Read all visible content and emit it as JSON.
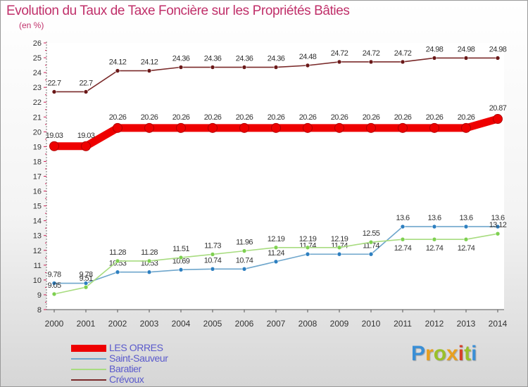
{
  "header": {
    "title": "Evolution du Taux de Taxe Foncière sur les Propriétés Bâties",
    "unit": "(en %)"
  },
  "brand": {
    "letters": [
      "P",
      "r",
      "o",
      "x",
      "i",
      "t",
      "i"
    ],
    "colors": [
      "#3a8fd6",
      "#e8a020",
      "#9ac02a",
      "#e8a020",
      "#d6402a",
      "#9ac02a",
      "#3a8fd6"
    ]
  },
  "colors": {
    "title": "#c0306a",
    "axis": "#555555",
    "grid": "#dddddd"
  },
  "chart_data": {
    "type": "line",
    "title": "Evolution du Taux de Taxe Foncière sur les Propriétés Bâties",
    "ylabel": "(en %)",
    "xlabel": "",
    "ylim": [
      8,
      26
    ],
    "yticks": [
      8,
      9,
      10,
      11,
      12,
      13,
      14,
      15,
      16,
      17,
      18,
      19,
      20,
      21,
      22,
      23,
      24,
      25,
      26
    ],
    "categories": [
      "2000",
      "2001",
      "2002",
      "2003",
      "2004",
      "2005",
      "2006",
      "2007",
      "2008",
      "2009",
      "2010",
      "2011",
      "2012",
      "2013",
      "2014"
    ],
    "series": [
      {
        "name": "LES ORRES",
        "color": "#ee0000",
        "marker": "#ee0000",
        "weight": "thick",
        "values": [
          19.03,
          19.03,
          20.26,
          20.26,
          20.26,
          20.26,
          20.26,
          20.26,
          20.26,
          20.26,
          20.26,
          20.26,
          20.26,
          20.26,
          20.87
        ],
        "labels": [
          "19.03",
          "19.03",
          "20.26",
          "20.26",
          "20.26",
          "20.26",
          "20.26",
          "20.26",
          "20.26",
          "20.26",
          "20.26",
          "20.26",
          "20.26",
          "20.26",
          "20.87"
        ],
        "label_pos": "above"
      },
      {
        "name": "Saint-Sauveur",
        "color": "#6ea6cc",
        "marker": "#2d7fc0",
        "weight": "thin",
        "values": [
          9.78,
          9.78,
          10.53,
          10.53,
          10.69,
          10.74,
          10.74,
          11.24,
          11.74,
          11.74,
          11.74,
          13.6,
          13.6,
          13.6,
          13.6
        ],
        "labels": [
          "9.78",
          "9.78",
          "10.53",
          "10.53",
          "10.69",
          "10.74",
          "10.74",
          "11.24",
          "11.74",
          "11.74",
          "11.74",
          "13.6",
          "13.6",
          "13.6",
          "13.6"
        ],
        "label_pos": [
          "above",
          "above",
          "above",
          "above",
          "above",
          "above",
          "above",
          "above",
          "above",
          "above",
          "above",
          "above",
          "above",
          "above",
          "above"
        ]
      },
      {
        "name": "Baratier",
        "color": "#a8dc80",
        "marker": "#7ed050",
        "weight": "thin",
        "values": [
          9.05,
          9.51,
          11.28,
          11.28,
          11.51,
          11.73,
          11.96,
          12.19,
          12.19,
          12.19,
          12.55,
          12.74,
          12.74,
          12.74,
          13.12
        ],
        "labels": [
          "9.05",
          "9.51",
          "11.28",
          "11.28",
          "11.51",
          "11.73",
          "11.96",
          "12.19",
          "12.19",
          "12.19",
          "12.55",
          "12.74",
          "12.74",
          "12.74",
          "13.12"
        ],
        "label_pos": [
          "above",
          "above",
          "above",
          "above",
          "above",
          "above",
          "above",
          "above",
          "above",
          "above",
          "above",
          "below",
          "below",
          "below",
          "above"
        ]
      },
      {
        "name": "Crévoux",
        "color": "#7a2a2a",
        "marker": "#6a1818",
        "weight": "thin",
        "values": [
          22.7,
          22.7,
          24.12,
          24.12,
          24.36,
          24.36,
          24.36,
          24.36,
          24.48,
          24.72,
          24.72,
          24.72,
          24.98,
          24.98,
          24.98
        ],
        "labels": [
          "22.7",
          "22.7",
          "24.12",
          "24.12",
          "24.36",
          "24.36",
          "24.36",
          "24.36",
          "24.48",
          "24.72",
          "24.72",
          "24.72",
          "24.98",
          "24.98",
          "24.98"
        ],
        "label_pos": "above"
      }
    ],
    "legend": [
      "LES ORRES",
      "Saint-Sauveur",
      "Baratier",
      "Crévoux"
    ],
    "legend_position": "bottom-left",
    "grid": false
  }
}
